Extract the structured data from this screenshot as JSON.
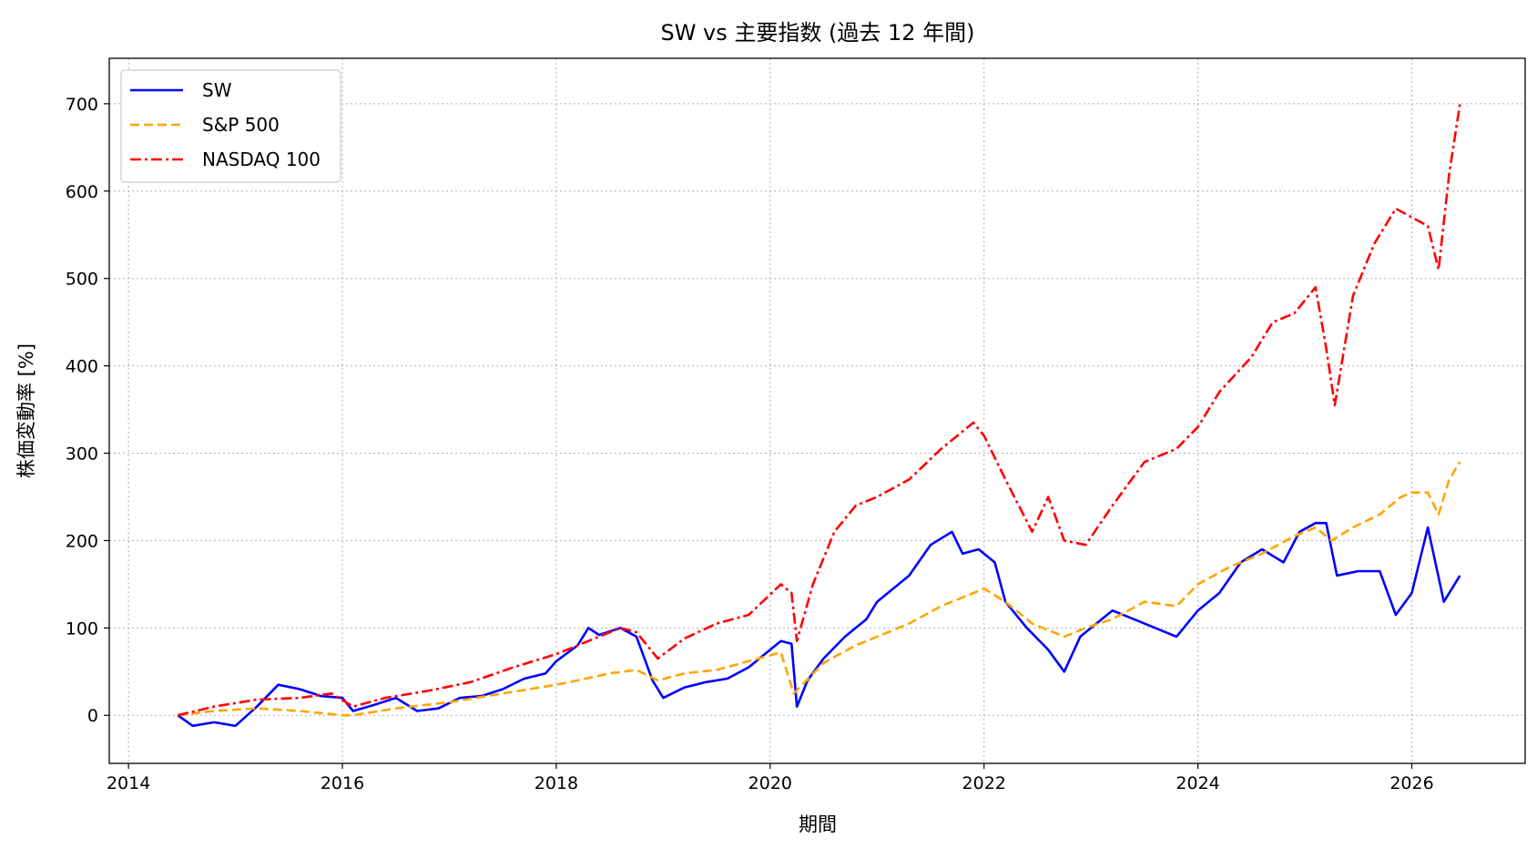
{
  "chart_data": {
    "type": "line",
    "title": "SW vs 主要指数 (過去 12 年間)",
    "xlabel": "期間",
    "ylabel": "株価変動率 [%]",
    "xlim": [
      2013.82,
      2027.06
    ],
    "ylim": [
      -55,
      752
    ],
    "x_ticks": [
      2014,
      2016,
      2018,
      2020,
      2022,
      2024,
      2026
    ],
    "x_tick_labels": [
      "2014",
      "2016",
      "2018",
      "2020",
      "2022",
      "2024",
      "2026"
    ],
    "y_ticks": [
      0,
      100,
      200,
      300,
      400,
      500,
      600,
      700
    ],
    "y_tick_labels": [
      "0",
      "100",
      "200",
      "300",
      "400",
      "500",
      "600",
      "700"
    ],
    "grid": true,
    "legend_position": "top-left",
    "series": [
      {
        "name": "SW",
        "color": "#0000ff",
        "dash": "solid",
        "x": [
          2014.46,
          2014.6,
          2014.8,
          2015.0,
          2015.2,
          2015.4,
          2015.6,
          2015.8,
          2016.0,
          2016.1,
          2016.3,
          2016.5,
          2016.7,
          2016.9,
          2017.1,
          2017.3,
          2017.5,
          2017.7,
          2017.9,
          2018.0,
          2018.2,
          2018.3,
          2018.4,
          2018.6,
          2018.75,
          2018.9,
          2019.0,
          2019.2,
          2019.4,
          2019.6,
          2019.8,
          2020.0,
          2020.1,
          2020.2,
          2020.25,
          2020.35,
          2020.5,
          2020.7,
          2020.9,
          2021.0,
          2021.2,
          2021.3,
          2021.5,
          2021.7,
          2021.8,
          2021.95,
          2022.1,
          2022.2,
          2022.4,
          2022.6,
          2022.75,
          2022.9,
          2023.0,
          2023.2,
          2023.4,
          2023.6,
          2023.8,
          2024.0,
          2024.2,
          2024.4,
          2024.6,
          2024.8,
          2024.95,
          2025.1,
          2025.2,
          2025.3,
          2025.5,
          2025.7,
          2025.85,
          2026.0,
          2026.15,
          2026.3,
          2026.45
        ],
        "values": [
          0,
          -12,
          -8,
          -12,
          10,
          35,
          30,
          22,
          20,
          5,
          12,
          20,
          5,
          8,
          20,
          22,
          30,
          42,
          48,
          62,
          80,
          100,
          92,
          100,
          90,
          40,
          20,
          32,
          38,
          42,
          55,
          75,
          85,
          82,
          10,
          40,
          65,
          90,
          110,
          130,
          150,
          160,
          195,
          210,
          185,
          190,
          175,
          130,
          100,
          75,
          50,
          90,
          100,
          120,
          110,
          100,
          90,
          120,
          140,
          175,
          190,
          175,
          210,
          220,
          220,
          160,
          165,
          165,
          115,
          140,
          215,
          130,
          160
        ]
      },
      {
        "name": "S&P 500",
        "color": "#ffa500",
        "dash": "10,5",
        "x": [
          2014.46,
          2014.8,
          2015.2,
          2015.6,
          2016.0,
          2016.1,
          2016.5,
          2017.0,
          2017.5,
          2018.0,
          2018.2,
          2018.5,
          2018.75,
          2018.95,
          2019.2,
          2019.5,
          2019.8,
          2020.1,
          2020.22,
          2020.3,
          2020.5,
          2020.8,
          2021.0,
          2021.3,
          2021.6,
          2021.9,
          2022.0,
          2022.2,
          2022.45,
          2022.75,
          2022.95,
          2023.2,
          2023.5,
          2023.8,
          2024.0,
          2024.3,
          2024.6,
          2024.9,
          2025.1,
          2025.25,
          2025.45,
          2025.7,
          2025.9,
          2026.0,
          2026.15,
          2026.25,
          2026.35,
          2026.45
        ],
        "values": [
          0,
          5,
          8,
          5,
          0,
          0,
          8,
          15,
          25,
          35,
          40,
          48,
          52,
          40,
          48,
          52,
          62,
          72,
          25,
          35,
          60,
          80,
          90,
          105,
          125,
          140,
          145,
          130,
          105,
          90,
          100,
          110,
          130,
          125,
          150,
          170,
          185,
          205,
          215,
          200,
          215,
          230,
          250,
          255,
          255,
          230,
          270,
          290
        ]
      },
      {
        "name": "NASDAQ 100",
        "color": "#ff0000",
        "dash": "12,4,3,4",
        "x": [
          2014.46,
          2014.8,
          2015.2,
          2015.6,
          2015.9,
          2016.1,
          2016.4,
          2016.8,
          2017.2,
          2017.6,
          2018.0,
          2018.3,
          2018.6,
          2018.75,
          2018.95,
          2019.2,
          2019.5,
          2019.8,
          2020.1,
          2020.2,
          2020.25,
          2020.4,
          2020.6,
          2020.8,
          2021.0,
          2021.3,
          2021.6,
          2021.9,
          2022.0,
          2022.2,
          2022.45,
          2022.6,
          2022.75,
          2022.95,
          2023.2,
          2023.5,
          2023.8,
          2024.0,
          2024.2,
          2024.5,
          2024.7,
          2024.9,
          2025.1,
          2025.2,
          2025.28,
          2025.45,
          2025.65,
          2025.85,
          2026.0,
          2026.15,
          2026.25,
          2026.35,
          2026.45
        ],
        "values": [
          0,
          10,
          18,
          20,
          25,
          10,
          20,
          28,
          38,
          55,
          70,
          85,
          100,
          95,
          65,
          88,
          105,
          115,
          150,
          140,
          85,
          150,
          210,
          240,
          250,
          270,
          305,
          335,
          320,
          270,
          210,
          250,
          200,
          195,
          240,
          290,
          305,
          330,
          370,
          410,
          450,
          460,
          490,
          420,
          355,
          480,
          540,
          580,
          570,
          560,
          510,
          620,
          700
        ]
      }
    ]
  }
}
